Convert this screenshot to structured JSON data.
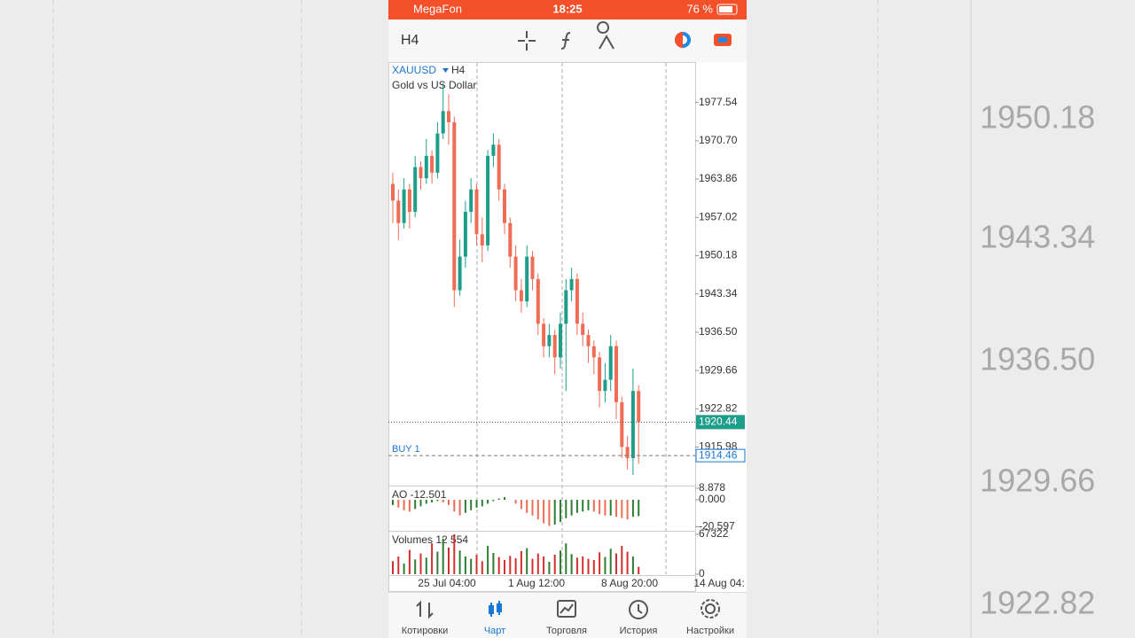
{
  "background": {
    "price_labels": [
      "1950.18",
      "1943.34",
      "1936.50",
      "1929.66",
      "1922.82"
    ]
  },
  "status_bar": {
    "carrier": "MegaFon",
    "time": "18:25",
    "battery": "76 %"
  },
  "toolbar": {
    "timeframe": "H4"
  },
  "tabs": [
    "Котировки",
    "Чарт",
    "Торговля",
    "История",
    "Настройки"
  ],
  "chart_data": {
    "type": "candlestick",
    "symbol": "XAUUSD",
    "timeframe": "H4",
    "subtitle": "Gold vs US Dollar",
    "open": [
      1963,
      1960,
      1956,
      1962,
      1958,
      1966,
      1964,
      1968,
      1965,
      1972,
      1976,
      1974,
      1944,
      1950,
      1958,
      1962,
      1954,
      1952,
      1968,
      1970,
      1962,
      1956,
      1950,
      1944,
      1942,
      1950,
      1946,
      1938,
      1934,
      1936,
      1932,
      1938,
      1944,
      1946,
      1938,
      1936,
      1934,
      1932,
      1926,
      1928,
      1934,
      1924,
      1916,
      1914,
      1926
    ],
    "high": [
      1965,
      1962,
      1964,
      1963,
      1968,
      1967,
      1971,
      1969,
      1974,
      1981,
      1979,
      1975,
      1953,
      1960,
      1964,
      1963,
      1957,
      1969,
      1972,
      1971,
      1963,
      1957,
      1952,
      1946,
      1952,
      1951,
      1947,
      1939,
      1938,
      1937,
      1940,
      1946,
      1948,
      1947,
      1940,
      1937,
      1935,
      1933,
      1931,
      1936,
      1935,
      1925,
      1918,
      1930,
      1927
    ],
    "low": [
      1956,
      1953,
      1955,
      1955,
      1957,
      1962,
      1963,
      1963,
      1964,
      1971,
      1970,
      1941,
      1943,
      1948,
      1956,
      1952,
      1949,
      1951,
      1966,
      1960,
      1954,
      1948,
      1942,
      1940,
      1941,
      1944,
      1936,
      1932,
      1932,
      1929,
      1930,
      1926,
      1942,
      1936,
      1934,
      1931,
      1929,
      1923,
      1924,
      1926,
      1921,
      1914,
      1912,
      1911,
      1913
    ],
    "close": [
      1960,
      1956,
      1962,
      1958,
      1966,
      1964,
      1968,
      1965,
      1972,
      1976,
      1974,
      1944,
      1950,
      1958,
      1962,
      1954,
      1952,
      1968,
      1970,
      1962,
      1956,
      1950,
      1944,
      1942,
      1950,
      1946,
      1938,
      1934,
      1936,
      1932,
      1938,
      1944,
      1946,
      1938,
      1936,
      1934,
      1932,
      1926,
      1928,
      1934,
      1924,
      1916,
      1914,
      1926,
      1920.44
    ],
    "ylim": [
      1909.1,
      1984.6
    ],
    "yticks": [
      1977.54,
      {
        "value": 1970.7,
        "label": "1970.70"
      },
      1963.86,
      1957.02,
      1950.18,
      1943.34,
      {
        "value": 1936.5,
        "label": "1936.50"
      },
      1929.66,
      1922.82,
      1915.98
    ],
    "current_price": 1920.44,
    "buy_line": {
      "label": "BUY 1",
      "price": 1914.46
    },
    "time_labels": [
      "25 Jul 04:00",
      "1 Aug 12:00",
      "8 Aug 20:00",
      "14 Aug 04:"
    ],
    "ao": {
      "label": "AO -12.501",
      "values": [
        -4,
        -6,
        -8,
        -9,
        -7,
        -5,
        -3,
        -2,
        -1,
        -2,
        -4,
        -9,
        -12,
        -10,
        -8,
        -6,
        -5,
        -3,
        -1,
        1,
        2,
        0,
        -3,
        -7,
        -10,
        -12,
        -15,
        -18,
        -20,
        -19,
        -17,
        -14,
        -12,
        -10,
        -9,
        -8,
        -9,
        -11,
        -12,
        -12,
        -13,
        -14,
        -15,
        -13,
        -12.501
      ],
      "ylim": [
        -23,
        9.5
      ],
      "yticks": [
        8.878,
        {
          "value": 0,
          "label": "0.000"
        },
        -20.597
      ]
    },
    "volumes": {
      "label": "Volumes 12 554",
      "values": [
        22000,
        30000,
        18000,
        41000,
        25000,
        35000,
        28000,
        52000,
        38000,
        60000,
        45000,
        67322,
        40000,
        30000,
        26000,
        33000,
        22000,
        48000,
        36000,
        29000,
        24000,
        31000,
        27000,
        39000,
        44000,
        26000,
        35000,
        30000,
        21000,
        33000,
        40000,
        52000,
        34000,
        28000,
        30000,
        26000,
        24000,
        37000,
        29000,
        43000,
        35000,
        48000,
        38000,
        30000,
        12554
      ],
      "ylim": [
        0,
        67322
      ],
      "yticks": [
        67322,
        0
      ]
    }
  }
}
